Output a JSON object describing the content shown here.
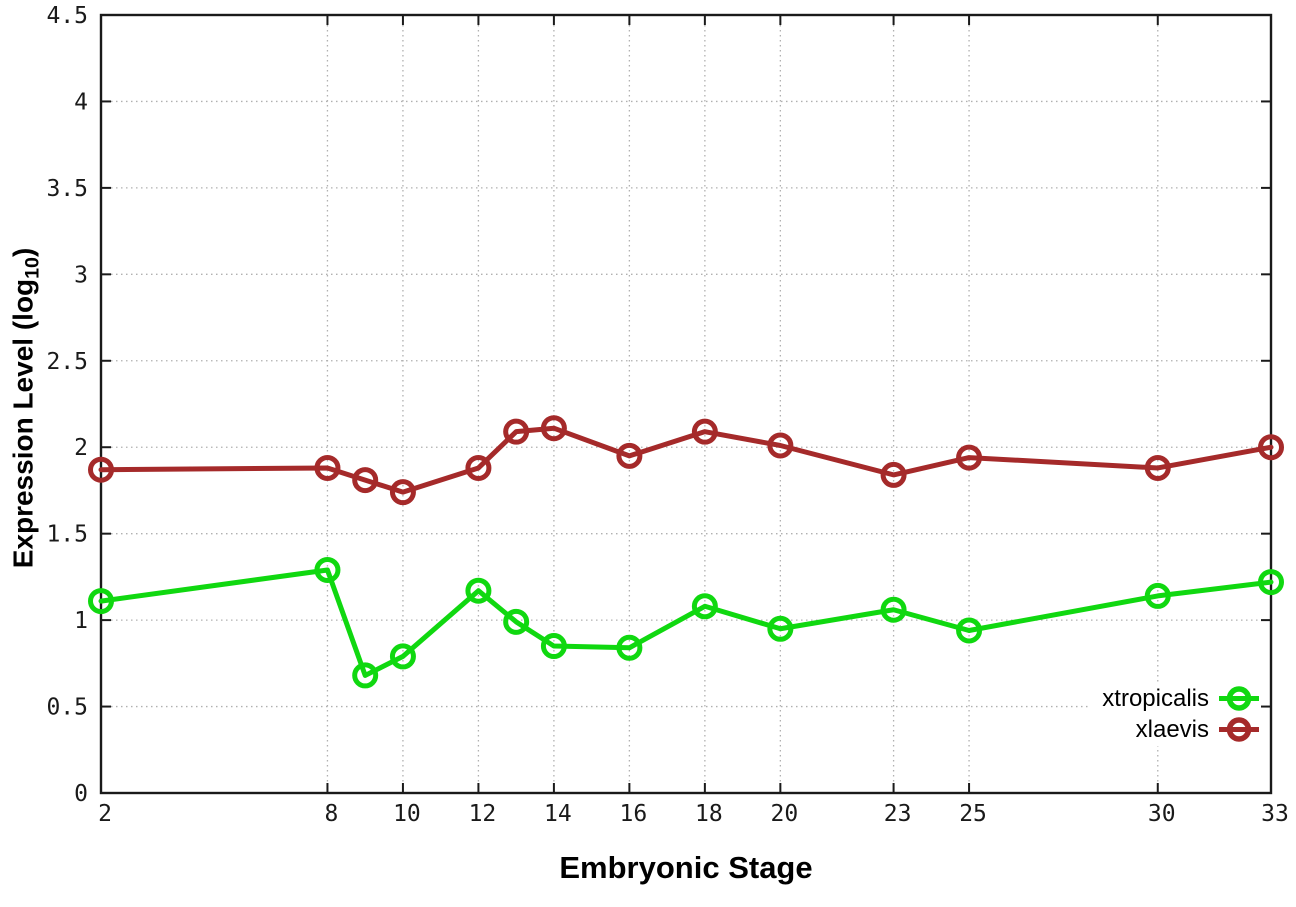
{
  "figure": {
    "background": "#ffffff",
    "border_color": "#1a1a1a",
    "grid_color": "#b0b0b0",
    "tick_label_color": "#1a1a1a"
  },
  "labels": {
    "y_main": "Expression Level (log",
    "y_sub": "10",
    "y_close": ")"
  },
  "chart_data": {
    "type": "line",
    "title": "",
    "xlabel": "Embryonic Stage",
    "ylabel": "Expression Level (log10)",
    "xlim": [
      2,
      33
    ],
    "ylim": [
      0,
      4.5
    ],
    "grid": true,
    "marker": "open-circle",
    "legend_position": "bottom-right-inside",
    "x": [
      2,
      8,
      9,
      10,
      12,
      13,
      14,
      16,
      18,
      20,
      23,
      25,
      30,
      33
    ],
    "xticks": [
      2,
      8,
      10,
      12,
      14,
      16,
      18,
      20,
      23,
      25,
      30,
      33
    ],
    "yticks": [
      0,
      0.5,
      1,
      1.5,
      2,
      2.5,
      3,
      3.5,
      4,
      4.5
    ],
    "series": [
      {
        "name": "xtropicalis",
        "color": "#10d810",
        "values": [
          1.11,
          1.29,
          0.68,
          0.79,
          1.17,
          0.99,
          0.85,
          0.84,
          1.08,
          0.95,
          1.06,
          0.94,
          1.14,
          1.22
        ]
      },
      {
        "name": "xlaevis",
        "color": "#a52a2a",
        "values": [
          1.87,
          1.88,
          1.81,
          1.74,
          1.88,
          2.09,
          2.11,
          1.95,
          2.09,
          2.01,
          1.84,
          1.94,
          1.88,
          2.0
        ]
      }
    ]
  }
}
